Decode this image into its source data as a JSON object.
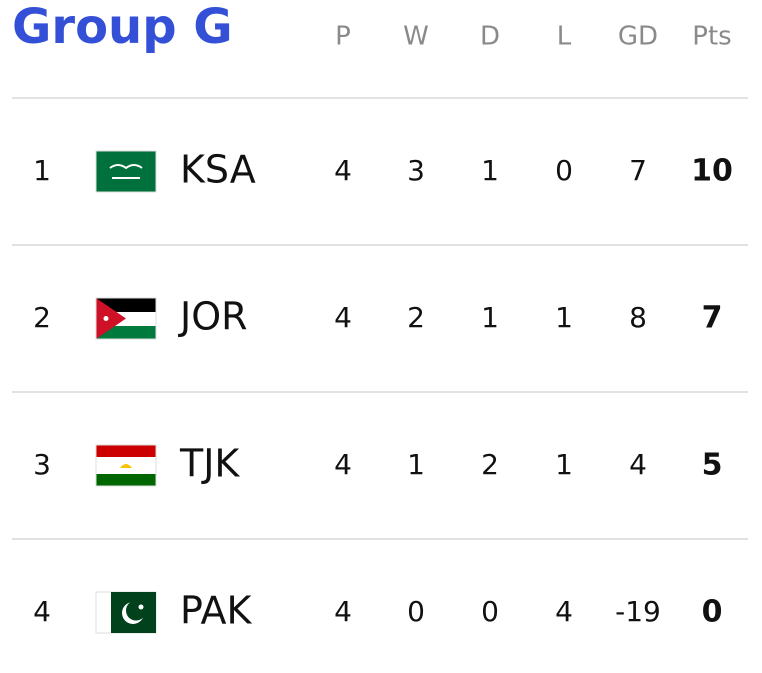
{
  "header": {
    "title": "Group G",
    "columns": [
      "P",
      "W",
      "D",
      "L",
      "GD",
      "Pts"
    ]
  },
  "table": {
    "rows": [
      {
        "rank": "1",
        "team": "KSA",
        "stats": [
          "4",
          "3",
          "1",
          "0",
          "7",
          "10"
        ]
      },
      {
        "rank": "2",
        "team": "JOR",
        "stats": [
          "4",
          "2",
          "1",
          "1",
          "8",
          "7"
        ]
      },
      {
        "rank": "3",
        "team": "TJK",
        "stats": [
          "4",
          "1",
          "2",
          "1",
          "4",
          "5"
        ]
      },
      {
        "rank": "4",
        "team": "PAK",
        "stats": [
          "4",
          "0",
          "0",
          "4",
          "-19",
          "0"
        ]
      }
    ]
  }
}
